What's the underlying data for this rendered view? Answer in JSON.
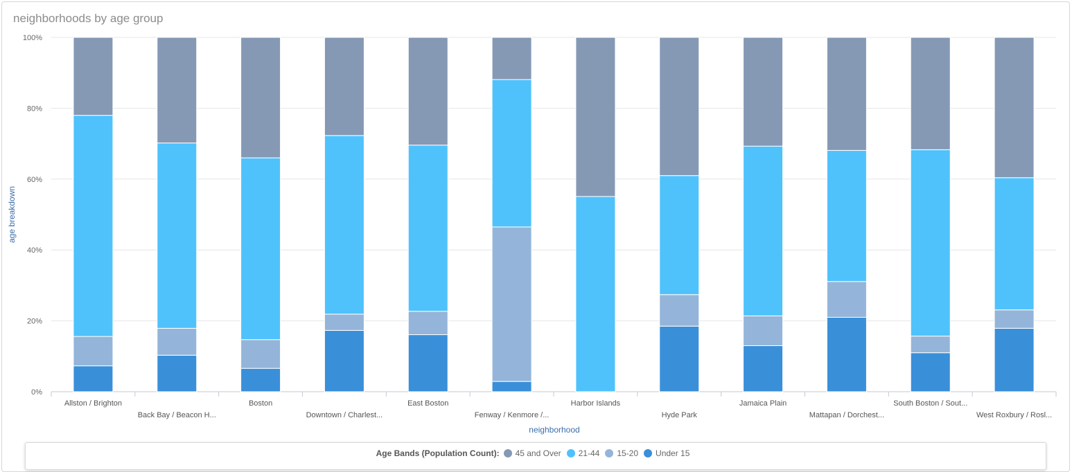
{
  "chart_data": {
    "type": "bar",
    "stacked": true,
    "percent": true,
    "title": "neighborhoods by age group",
    "xlabel": "neighborhood",
    "ylabel": "age breakdown",
    "ylim": [
      0,
      100
    ],
    "yticks": [
      "0%",
      "20%",
      "40%",
      "60%",
      "80%",
      "100%"
    ],
    "categories": [
      "Allston / Brighton",
      "Back Bay / Beacon H...",
      "Boston",
      "Downtown / Charlest...",
      "East Boston",
      "Fenway / Kenmore /...",
      "Harbor Islands",
      "Hyde Park",
      "Jamaica Plain",
      "Mattapan / Dorchest...",
      "South Boston / Sout...",
      "West Roxbury / Rosl..."
    ],
    "series": [
      {
        "name": "Under 15",
        "color": "#3a8fd9",
        "values": [
          7.3,
          10.3,
          6.6,
          17.3,
          16.1,
          2.9,
          0,
          18.5,
          13.0,
          21.0,
          11.0,
          17.9
        ]
      },
      {
        "name": "15-20",
        "color": "#94b5d9",
        "values": [
          8.3,
          7.6,
          8.1,
          4.6,
          6.6,
          43.6,
          0,
          8.9,
          8.4,
          10.1,
          4.7,
          5.2
        ]
      },
      {
        "name": "21-44",
        "color": "#4fc2fc",
        "values": [
          62.4,
          52.3,
          51.3,
          50.4,
          46.9,
          41.6,
          55.1,
          33.6,
          47.9,
          37.0,
          52.6,
          37.3
        ]
      },
      {
        "name": "45 and Over",
        "color": "#8599b5",
        "values": [
          22.0,
          29.8,
          34.0,
          27.7,
          30.4,
          11.9,
          44.9,
          39.0,
          30.7,
          31.9,
          31.7,
          39.6
        ]
      }
    ],
    "legend": {
      "title": "Age Bands (Population Count):",
      "placement": "bottom",
      "order": [
        "45 and Over",
        "21-44",
        "15-20",
        "Under 15"
      ]
    },
    "grid": true
  }
}
